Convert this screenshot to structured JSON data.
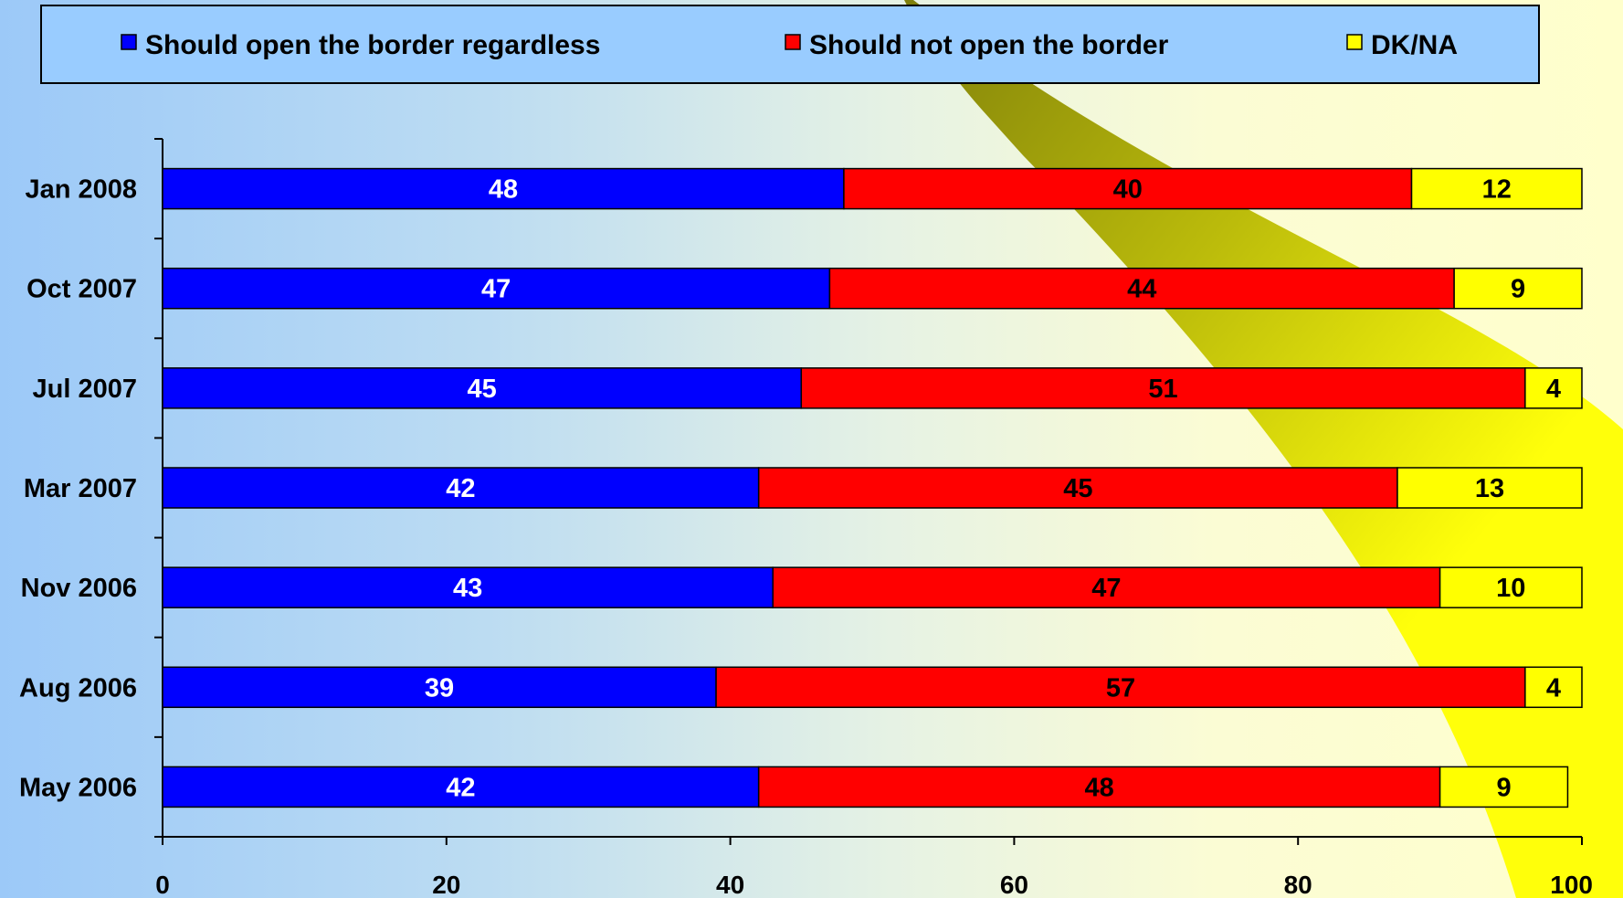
{
  "chart_data": {
    "type": "bar",
    "orientation": "horizontal",
    "stacked": true,
    "categories": [
      "Jan 2008",
      "Oct 2007",
      "Jul 2007",
      "Mar 2007",
      "Nov 2006",
      "Aug 2006",
      "May 2006"
    ],
    "series": [
      {
        "name": "Should open the border regardless",
        "color": "#0000ff",
        "label_color": "#ffffff",
        "values": [
          48,
          47,
          45,
          42,
          43,
          39,
          42
        ]
      },
      {
        "name": "Should not open the border",
        "color": "#ff0000",
        "label_color": "#000000",
        "values": [
          40,
          44,
          51,
          45,
          47,
          57,
          48
        ]
      },
      {
        "name": "DK/NA",
        "color": "#ffff00",
        "label_color": "#000000",
        "values": [
          12,
          9,
          4,
          13,
          10,
          4,
          9
        ]
      }
    ],
    "xlim": [
      0,
      100
    ],
    "xticks": [
      0,
      20,
      40,
      60,
      80,
      100
    ],
    "xtick_labels": [
      "0",
      "20",
      "40",
      "60",
      "80",
      "100"
    ],
    "legend_position": "top",
    "grid": false,
    "title": "",
    "xlabel": "",
    "ylabel": ""
  }
}
